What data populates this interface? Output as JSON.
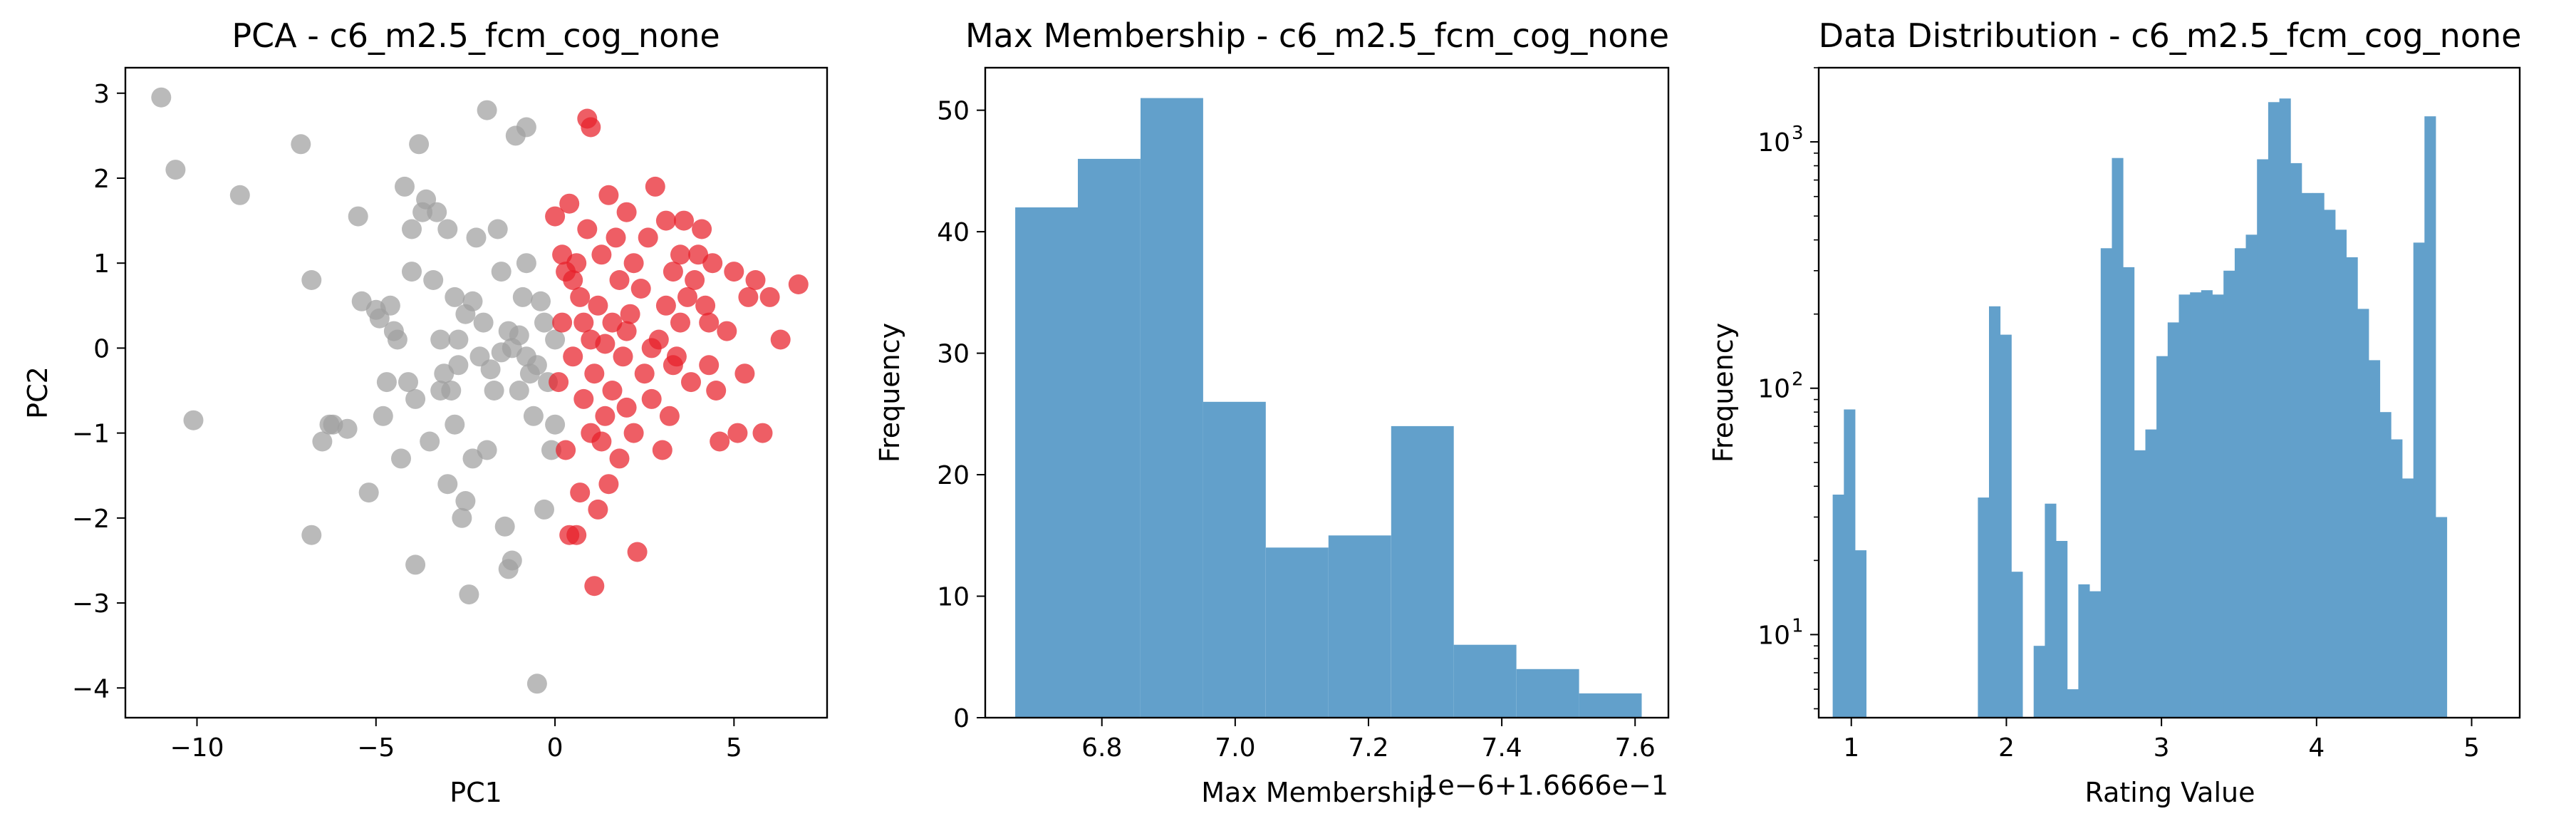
{
  "chart_data": [
    {
      "type": "scatter",
      "title": "PCA - c6_m2.5_fcm_cog_none",
      "xlabel": "PC1",
      "ylabel": "PC2",
      "xlim": [
        -12,
        7.6
      ],
      "ylim": [
        -4.35,
        3.3
      ],
      "xticks": [
        -10,
        -5,
        0,
        5
      ],
      "yticks": [
        -4,
        -3,
        -2,
        -1,
        0,
        1,
        2,
        3
      ],
      "tick_labels_x": [
        "−10",
        "−5",
        "0",
        "5"
      ],
      "tick_labels_y": [
        "−4",
        "−3",
        "−2",
        "−1",
        "0",
        "1",
        "2",
        "3"
      ],
      "grid": false,
      "series": [
        {
          "color": "#a0a0a0",
          "points": [
            [
              -11,
              2.95
            ],
            [
              -10.6,
              2.1
            ],
            [
              -10.1,
              -0.85
            ],
            [
              -8.8,
              1.8
            ],
            [
              -7.1,
              2.4
            ],
            [
              -6.8,
              0.8
            ],
            [
              -6.8,
              -2.2
            ],
            [
              -6.5,
              -1.1
            ],
            [
              -6.3,
              -0.9
            ],
            [
              -6.2,
              -0.9
            ],
            [
              -5.8,
              -0.95
            ],
            [
              -5.5,
              1.55
            ],
            [
              -5.4,
              0.55
            ],
            [
              -5.2,
              -1.7
            ],
            [
              -5,
              0.45
            ],
            [
              -4.9,
              0.35
            ],
            [
              -4.8,
              -0.8
            ],
            [
              -4.7,
              -0.4
            ],
            [
              -4.6,
              0.5
            ],
            [
              -4.5,
              0.2
            ],
            [
              -4.4,
              0.1
            ],
            [
              -4.3,
              -1.3
            ],
            [
              -4.2,
              1.9
            ],
            [
              -4.1,
              -0.4
            ],
            [
              -4.0,
              1.4
            ],
            [
              -4.0,
              0.9
            ],
            [
              -3.9,
              -2.55
            ],
            [
              -3.8,
              2.4
            ],
            [
              -3.7,
              1.6
            ],
            [
              -3.6,
              1.75
            ],
            [
              -3.5,
              -1.1
            ],
            [
              -3.4,
              0.8
            ],
            [
              -3.3,
              1.6
            ],
            [
              -3.2,
              0.1
            ],
            [
              -3.1,
              -0.3
            ],
            [
              -3.0,
              1.4
            ],
            [
              -3.0,
              -1.6
            ],
            [
              -2.9,
              -0.5
            ],
            [
              -2.8,
              0.6
            ],
            [
              -2.8,
              -0.9
            ],
            [
              -2.7,
              -0.2
            ],
            [
              -2.6,
              -2.0
            ],
            [
              -2.5,
              -1.8
            ],
            [
              -2.5,
              0.4
            ],
            [
              -2.4,
              -2.9
            ],
            [
              -2.3,
              -1.3
            ],
            [
              -2.3,
              0.55
            ],
            [
              -2.2,
              1.3
            ],
            [
              -2.1,
              -0.1
            ],
            [
              -2.0,
              0.3
            ],
            [
              -1.9,
              -1.2
            ],
            [
              -1.9,
              2.8
            ],
            [
              -1.8,
              -0.25
            ],
            [
              -1.7,
              -0.5
            ],
            [
              -1.6,
              1.4
            ],
            [
              -1.5,
              0.9
            ],
            [
              -1.4,
              -2.1
            ],
            [
              -1.3,
              -2.6
            ],
            [
              -1.3,
              0.2
            ],
            [
              -1.2,
              0.0
            ],
            [
              -1.2,
              -2.5
            ],
            [
              -1.1,
              2.5
            ],
            [
              -1.0,
              -0.5
            ],
            [
              -0.9,
              0.6
            ],
            [
              -0.8,
              1.0
            ],
            [
              -0.8,
              2.6
            ],
            [
              -0.7,
              -0.3
            ],
            [
              -0.6,
              -0.8
            ],
            [
              -0.5,
              -3.95
            ],
            [
              -0.4,
              0.55
            ],
            [
              -0.3,
              0.3
            ],
            [
              -0.3,
              -1.9
            ],
            [
              -0.2,
              -0.4
            ],
            [
              -0.1,
              -1.2
            ],
            [
              0.0,
              -0.9
            ],
            [
              0.0,
              0.1
            ],
            [
              -0.5,
              -0.2
            ],
            [
              -0.8,
              -0.1
            ],
            [
              -1.0,
              0.15
            ],
            [
              -1.5,
              -0.05
            ],
            [
              -2.7,
              0.1
            ],
            [
              -3.2,
              -0.5
            ],
            [
              -3.9,
              -0.6
            ]
          ]
        },
        {
          "color": "#e8202a",
          "points": [
            [
              0,
              1.55
            ],
            [
              0.1,
              -0.4
            ],
            [
              0.2,
              0.3
            ],
            [
              0.3,
              -1.2
            ],
            [
              0.3,
              0.9
            ],
            [
              0.4,
              -2.2
            ],
            [
              0.4,
              1.7
            ],
            [
              0.5,
              0.8
            ],
            [
              0.5,
              -0.1
            ],
            [
              0.6,
              -2.2
            ],
            [
              0.6,
              1.0
            ],
            [
              0.7,
              -1.7
            ],
            [
              0.8,
              0.3
            ],
            [
              0.8,
              -0.6
            ],
            [
              0.9,
              1.4
            ],
            [
              0.9,
              2.7
            ],
            [
              1.0,
              -1.0
            ],
            [
              1.0,
              2.6
            ],
            [
              1.0,
              0.1
            ],
            [
              1.1,
              -2.8
            ],
            [
              1.1,
              -0.3
            ],
            [
              1.2,
              -1.9
            ],
            [
              1.2,
              0.5
            ],
            [
              1.3,
              -1.1
            ],
            [
              1.3,
              1.1
            ],
            [
              1.4,
              -0.8
            ],
            [
              1.5,
              1.8
            ],
            [
              1.5,
              -1.6
            ],
            [
              1.6,
              -0.5
            ],
            [
              1.6,
              0.3
            ],
            [
              1.7,
              1.3
            ],
            [
              1.8,
              -1.3
            ],
            [
              1.8,
              0.8
            ],
            [
              1.9,
              -0.1
            ],
            [
              2.0,
              1.6
            ],
            [
              2.0,
              -0.7
            ],
            [
              2.1,
              0.4
            ],
            [
              2.2,
              -1.0
            ],
            [
              2.2,
              1.0
            ],
            [
              2.3,
              -2.4
            ],
            [
              2.4,
              0.7
            ],
            [
              2.5,
              -0.3
            ],
            [
              2.6,
              1.3
            ],
            [
              2.7,
              -0.6
            ],
            [
              2.8,
              1.9
            ],
            [
              2.9,
              0.1
            ],
            [
              3.0,
              -1.2
            ],
            [
              3.1,
              1.5
            ],
            [
              3.1,
              0.5
            ],
            [
              3.2,
              -0.8
            ],
            [
              3.3,
              0.9
            ],
            [
              3.4,
              -0.1
            ],
            [
              3.5,
              1.1
            ],
            [
              3.5,
              0.3
            ],
            [
              3.6,
              1.5
            ],
            [
              3.7,
              0.6
            ],
            [
              3.8,
              -0.4
            ],
            [
              3.9,
              0.8
            ],
            [
              4.0,
              1.1
            ],
            [
              4.1,
              1.4
            ],
            [
              4.2,
              0.5
            ],
            [
              4.3,
              -0.2
            ],
            [
              4.4,
              1.0
            ],
            [
              4.5,
              -0.5
            ],
            [
              4.6,
              -1.1
            ],
            [
              4.8,
              0.2
            ],
            [
              5.0,
              0.9
            ],
            [
              5.1,
              -1.0
            ],
            [
              5.3,
              -0.3
            ],
            [
              5.4,
              0.6
            ],
            [
              5.6,
              0.8
            ],
            [
              5.8,
              -1.0
            ],
            [
              6.0,
              0.6
            ],
            [
              6.3,
              0.1
            ],
            [
              6.8,
              0.75
            ],
            [
              2.7,
              0.0
            ],
            [
              1.4,
              0.05
            ],
            [
              0.7,
              0.6
            ],
            [
              3.3,
              -0.2
            ],
            [
              0.2,
              1.1
            ],
            [
              4.3,
              0.3
            ],
            [
              2.0,
              0.2
            ]
          ]
        }
      ]
    },
    {
      "type": "bar",
      "title": "Max Membership - c6_m2.5_fcm_cog_none",
      "xlabel": "Max Membership",
      "ylabel": "Frequency",
      "offset_text": "1e−6+1.6666e−1",
      "xlim": [
        6.625,
        7.65
      ],
      "ylim": [
        0,
        53.5
      ],
      "xticks": [
        6.8,
        7.0,
        7.2,
        7.4,
        7.6
      ],
      "tick_labels_x": [
        "6.8",
        "7.0",
        "7.2",
        "7.4",
        "7.6"
      ],
      "yticks": [
        0,
        10,
        20,
        30,
        40,
        50
      ],
      "tick_labels_y": [
        "0",
        "10",
        "20",
        "30",
        "40",
        "50"
      ],
      "bar_color": "#62a0cb",
      "bin_edges": [
        6.67,
        6.764,
        6.858,
        6.952,
        7.046,
        7.14,
        7.234,
        7.328,
        7.422,
        7.516,
        7.61
      ],
      "values": [
        42,
        46,
        51,
        26,
        14,
        15,
        24,
        6,
        4,
        2
      ]
    },
    {
      "type": "bar",
      "title": "Data Distribution - c6_m2.5_fcm_cog_none",
      "xlabel": "Rating Value",
      "ylabel": "Frequency",
      "yscale": "log",
      "xlim": [
        0.79,
        5.31
      ],
      "ylim": [
        4.6,
        2000
      ],
      "xticks": [
        1,
        2,
        3,
        4,
        5
      ],
      "tick_labels_x": [
        "1",
        "2",
        "3",
        "4",
        "5"
      ],
      "yticks": [
        10,
        100,
        1000
      ],
      "tick_labels_y_base": [
        "10",
        "10",
        "10"
      ],
      "tick_labels_y_exp": [
        "1",
        "2",
        "3"
      ],
      "bar_color": "#62a0cb",
      "bin_start": 0.88,
      "bin_width": 0.072,
      "values": [
        37,
        82,
        22,
        0,
        0,
        0,
        0,
        0,
        0,
        0,
        0,
        0,
        0,
        36,
        215,
        165,
        18,
        0,
        9,
        34,
        24,
        6,
        16,
        15,
        370,
        860,
        310,
        56,
        68,
        135,
        185,
        240,
        245,
        250,
        240,
        300,
        370,
        420,
        850,
        1450,
        1500,
        820,
        620,
        620,
        530,
        440,
        340,
        210,
        130,
        80,
        62,
        43,
        390,
        1270,
        30
      ]
    }
  ]
}
